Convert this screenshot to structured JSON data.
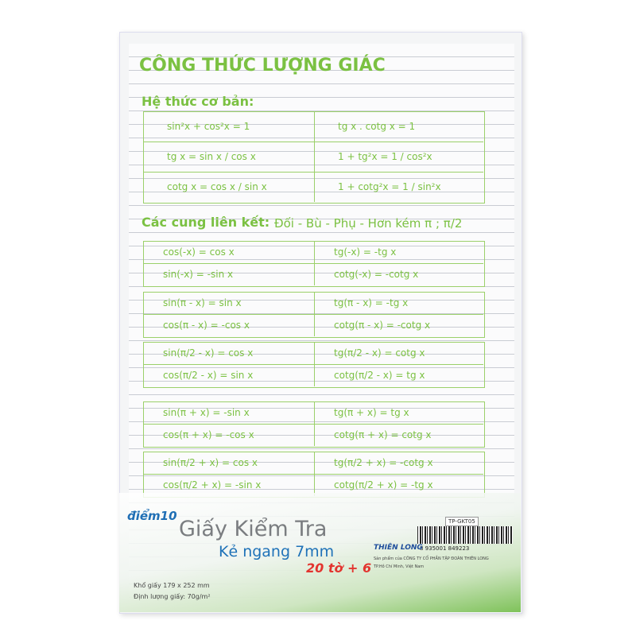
{
  "sheet": {
    "title": "CÔNG THỨC LƯỢNG GIÁC",
    "basic_heading": "Hệ thức cơ bản:",
    "basic_rows": [
      [
        "sin²x + cos²x = 1",
        "tg x . cotg x = 1"
      ],
      [
        "tg x = sin x / cos x",
        "1 + tg²x = 1 / cos²x"
      ],
      [
        "cotg x = cos x / sin x",
        "1 + cotg²x = 1 / sin²x"
      ]
    ],
    "related_heading": "Các cung liên kết:",
    "related_kinds": "Đối - Bù - Phụ - Hơn kém π ; π/2",
    "groups": [
      [
        [
          "cos(-x) = cos x",
          "tg(-x) = -tg x"
        ],
        [
          "sin(-x) = -sin x",
          "cotg(-x) = -cotg x"
        ]
      ],
      [
        [
          "sin(π - x) = sin x",
          "tg(π - x) = -tg x"
        ],
        [
          "cos(π - x) = -cos x",
          "cotg(π - x) = -cotg x"
        ]
      ],
      [
        [
          "sin(π/2 - x) = cos x",
          "tg(π/2 - x) = cotg x"
        ],
        [
          "cos(π/2 - x) = sin x",
          "cotg(π/2 - x) = tg x"
        ]
      ],
      [
        [
          "sin(π + x) = -sin x",
          "tg(π + x) = tg x"
        ],
        [
          "cos(π + x) = -cos x",
          "cotg(π + x) = cotg x"
        ]
      ],
      [
        [
          "sin(π/2 + x) = cos x",
          "tg(π/2 + x) = -cotg x"
        ],
        [
          "cos(π/2 + x) = -sin x",
          "cotg(π/2 + x) = -tg x"
        ]
      ]
    ]
  },
  "label": {
    "brand": "điểm10",
    "product": "Giấy Kiểm Tra",
    "ruling": "Kẻ ngang 7mm",
    "count": "20 tờ + 6",
    "size": "Khổ giấy 179 x 252 mm",
    "weight": "Định lượng giấy: 70g/m²",
    "code": "TP-GKT05",
    "barcode": "8 935001 849223",
    "maker": "THIÊN LONG",
    "company": "Sản phẩm của CÔNG TY CỔ PHẦN TẬP ĐOÀN THIÊN LONG",
    "origin": "TP.Hồ Chí Minh, Việt Nam"
  }
}
